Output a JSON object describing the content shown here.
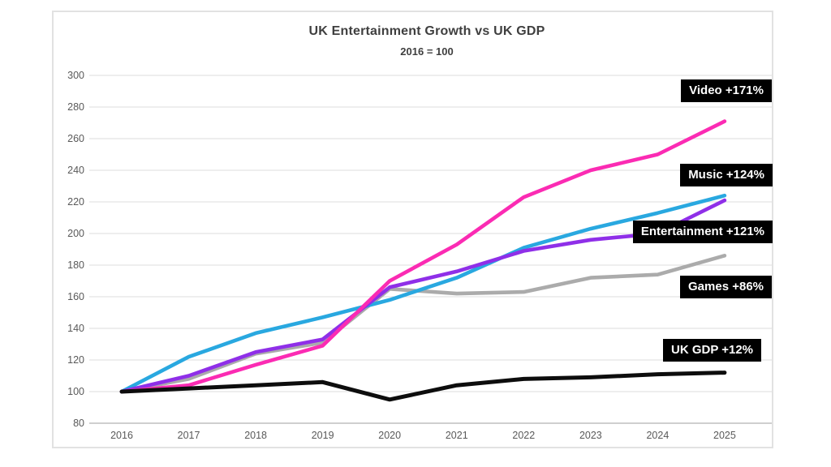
{
  "title": "UK Entertainment Growth vs UK GDP",
  "subtitle": "2016 = 100",
  "chart_data": {
    "type": "line",
    "x": [
      2016,
      2017,
      2018,
      2019,
      2020,
      2021,
      2022,
      2023,
      2024,
      2025
    ],
    "series": [
      {
        "name": "Video",
        "label": "Video +171%",
        "color": "#fb2bb3",
        "values": [
          100,
          104,
          117,
          129,
          170,
          193,
          223,
          240,
          250,
          271
        ]
      },
      {
        "name": "Music",
        "label": "Music +124%",
        "color": "#29a8e0",
        "values": [
          100,
          122,
          137,
          147,
          158,
          172,
          191,
          203,
          213,
          224
        ]
      },
      {
        "name": "Entertainment",
        "label": "Entertainment +121%",
        "color": "#8f2fe8",
        "values": [
          100,
          110,
          125,
          133,
          166,
          176,
          189,
          196,
          200,
          221
        ]
      },
      {
        "name": "Games",
        "label": "Games +86%",
        "color": "#ababab",
        "values": [
          100,
          108,
          124,
          131,
          165,
          162,
          163,
          172,
          174,
          186
        ]
      },
      {
        "name": "UK GDP",
        "label": "UK GDP +12%",
        "color": "#0d0d0d",
        "values": [
          100,
          102,
          104,
          106,
          95,
          104,
          108,
          109,
          111,
          112
        ]
      }
    ],
    "ylim": [
      80,
      300
    ],
    "ytick_step": 20,
    "grid": "horizontal",
    "legend_position": "inline-right-labels",
    "annotation_bg": "#000000",
    "annotation_fg": "#ffffff",
    "gridline_color": "#dcdcdc",
    "axisline_color": "#bfbfbf",
    "tick_label_color": "#595959"
  }
}
